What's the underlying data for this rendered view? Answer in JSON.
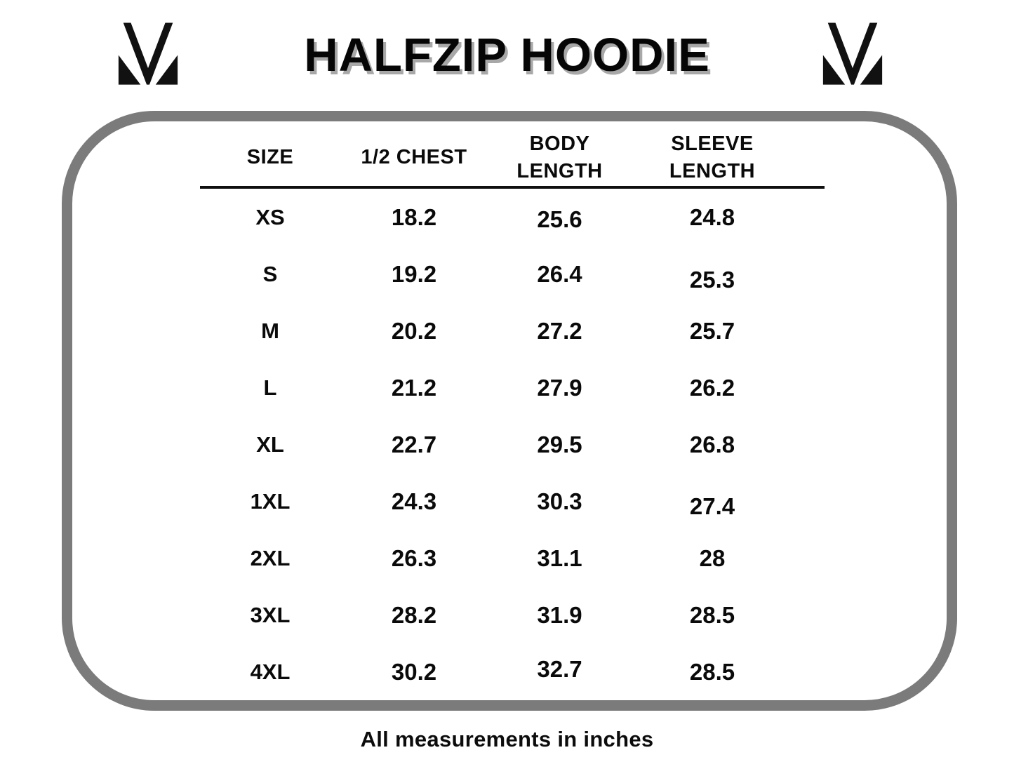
{
  "brand": {
    "logo": "m-monogram-logo",
    "logo_color": "#111111"
  },
  "chart_data": {
    "type": "table",
    "title": "HALFZIP HOODIE",
    "columns": [
      "SIZE",
      "1/2 CHEST",
      "BODY LENGTH",
      "SLEEVE LENGTH"
    ],
    "rows": [
      [
        "XS",
        "18.2",
        "25.6",
        "24.8"
      ],
      [
        "S",
        "19.2",
        "26.4",
        "25.3"
      ],
      [
        "M",
        "20.2",
        "27.2",
        "25.7"
      ],
      [
        "L",
        "21.2",
        "27.9",
        "26.2"
      ],
      [
        "XL",
        "22.7",
        "29.5",
        "26.8"
      ],
      [
        "1XL",
        "24.3",
        "30.3",
        "27.4"
      ],
      [
        "2XL",
        "26.3",
        "31.1",
        "28"
      ],
      [
        "3XL",
        "28.2",
        "31.9",
        "28.5"
      ],
      [
        "4XL",
        "30.2",
        "32.7",
        "28.5"
      ]
    ],
    "footnote": "All measurements in inches",
    "units": "inches",
    "layout": {
      "grid": "header divider + 9 rows",
      "legend": "none"
    }
  },
  "colors": {
    "background": "#ffffff",
    "frame_border": "#7b7b7b",
    "title_text": "#060606",
    "title_shadow": "#a8a8a8",
    "table_text": "#0a0a0a",
    "divider": "#101010"
  }
}
